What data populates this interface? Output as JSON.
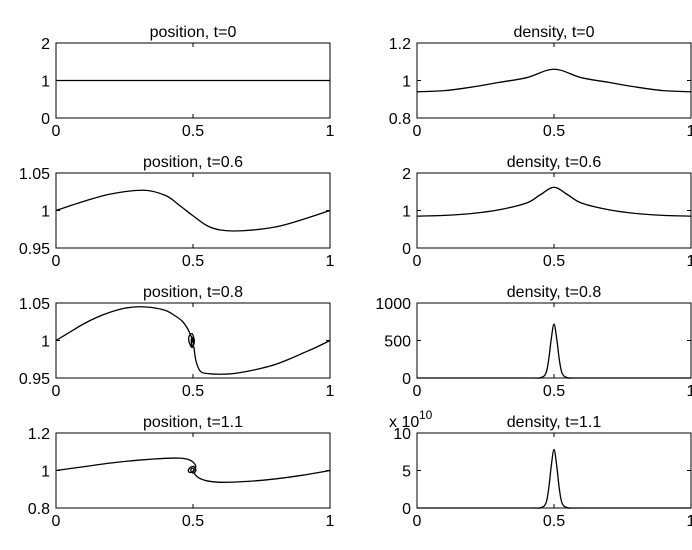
{
  "chart_data": [
    {
      "type": "line",
      "title": "position, t=0",
      "xlim": [
        0,
        1
      ],
      "ylim": [
        0,
        2
      ],
      "xticks": [
        0,
        0.5,
        1
      ],
      "xtick_labels": [
        "0",
        "0.5",
        "1"
      ],
      "yticks": [
        0,
        1,
        2
      ],
      "ytick_labels": [
        "0",
        "1",
        "2"
      ],
      "x": [
        0,
        0.5,
        1
      ],
      "y": [
        1,
        1,
        1
      ]
    },
    {
      "type": "line",
      "title": "density, t=0",
      "xlim": [
        0,
        1
      ],
      "ylim": [
        0.8,
        1.2
      ],
      "xticks": [
        0,
        0.5,
        1
      ],
      "xtick_labels": [
        "0",
        "0.5",
        "1"
      ],
      "yticks": [
        0.8,
        1,
        1.2
      ],
      "ytick_labels": [
        "0.8",
        "1",
        "1.2"
      ],
      "x": [
        0,
        0.1,
        0.2,
        0.3,
        0.4,
        0.5,
        0.6,
        0.7,
        0.8,
        0.9,
        1
      ],
      "y": [
        0.94,
        0.946,
        0.965,
        0.99,
        1.015,
        1.06,
        1.015,
        0.99,
        0.965,
        0.946,
        0.94
      ]
    },
    {
      "type": "line",
      "title": "position, t=0.6",
      "xlim": [
        0,
        1
      ],
      "ylim": [
        0.95,
        1.05
      ],
      "xticks": [
        0,
        0.5,
        1
      ],
      "xtick_labels": [
        "0",
        "0.5",
        "1"
      ],
      "yticks": [
        0.95,
        1,
        1.05
      ],
      "ytick_labels": [
        "0.95",
        "1",
        "1.05"
      ],
      "x": [
        0,
        0.1,
        0.2,
        0.32,
        0.4,
        0.45,
        0.5,
        0.55,
        0.6,
        0.68,
        0.8,
        0.9,
        1
      ],
      "y": [
        1.0,
        1.012,
        1.022,
        1.027,
        1.02,
        1.007,
        0.993,
        0.98,
        0.974,
        0.973,
        0.978,
        0.988,
        1.0
      ]
    },
    {
      "type": "line",
      "title": "density, t=0.6",
      "xlim": [
        0,
        1
      ],
      "ylim": [
        0,
        2
      ],
      "xticks": [
        0,
        0.5,
        1
      ],
      "xtick_labels": [
        "0",
        "0.5",
        "1"
      ],
      "yticks": [
        0,
        1,
        2
      ],
      "ytick_labels": [
        "0",
        "1",
        "2"
      ],
      "x": [
        0,
        0.1,
        0.2,
        0.3,
        0.4,
        0.45,
        0.5,
        0.55,
        0.6,
        0.7,
        0.8,
        0.9,
        1
      ],
      "y": [
        0.85,
        0.87,
        0.92,
        1.02,
        1.2,
        1.42,
        1.62,
        1.42,
        1.2,
        1.02,
        0.92,
        0.87,
        0.85
      ]
    },
    {
      "type": "line",
      "title": "position, t=0.8",
      "xlim": [
        0,
        1
      ],
      "ylim": [
        0.95,
        1.05
      ],
      "xticks": [
        0,
        0.5,
        1
      ],
      "xtick_labels": [
        "0",
        "0.5",
        "1"
      ],
      "yticks": [
        0.95,
        1,
        1.05
      ],
      "ytick_labels": [
        "0.95",
        "1",
        "1.05"
      ],
      "x": [
        0,
        0.05,
        0.1,
        0.15,
        0.2,
        0.25,
        0.3,
        0.35,
        0.4,
        0.43,
        0.46,
        0.48,
        0.49,
        0.5,
        0.5,
        0.495,
        0.49,
        0.485,
        0.485,
        0.49,
        0.497,
        0.502,
        0.505,
        0.502,
        0.497,
        0.494,
        0.494,
        0.497,
        0.5,
        0.5,
        0.497,
        0.495,
        0.497,
        0.499,
        0.498
      ],
      "y": [
        1.0,
        1.011,
        1.022,
        1.031,
        1.038,
        1.043,
        1.045,
        1.044,
        1.04,
        1.034,
        1.026,
        1.016,
        1.008,
        1.0,
        0.992,
        0.991,
        0.994,
        0.999,
        1.005,
        1.008,
        1.009,
        1.005,
        0.999,
        0.994,
        0.993,
        0.996,
        1.001,
        1.004,
        1.003,
        1.0,
        0.998,
        0.999,
        1.001,
        1.001,
        1.0
      ],
      "x2": [
        0.503,
        0.51,
        0.52,
        0.53,
        0.55,
        0.6,
        0.65,
        0.7,
        0.75,
        0.8,
        0.85,
        0.9,
        0.95,
        1
      ],
      "y2": [
        0.992,
        0.974,
        0.963,
        0.958,
        0.956,
        0.955,
        0.956,
        0.959,
        0.963,
        0.968,
        0.975,
        0.983,
        0.991,
        1.0
      ]
    },
    {
      "type": "line",
      "title": "density, t=0.8",
      "xlim": [
        0,
        1
      ],
      "ylim": [
        0,
        1000
      ],
      "xticks": [
        0,
        0.5,
        1
      ],
      "xtick_labels": [
        "0",
        "0.5",
        "1"
      ],
      "yticks": [
        0,
        500,
        1000
      ],
      "ytick_labels": [
        "0",
        "500",
        "1000"
      ],
      "x": [
        0,
        0.4,
        0.45,
        0.47,
        0.48,
        0.49,
        0.5,
        0.51,
        0.52,
        0.53,
        0.55,
        0.6,
        1
      ],
      "y": [
        0,
        0,
        5,
        60,
        230,
        520,
        720,
        520,
        230,
        60,
        5,
        0,
        0
      ]
    },
    {
      "type": "line",
      "title": "position, t=1.1",
      "xlim": [
        0,
        1
      ],
      "ylim": [
        0.8,
        1.2
      ],
      "xticks": [
        0,
        0.5,
        1
      ],
      "xtick_labels": [
        "0",
        "0.5",
        "1"
      ],
      "yticks": [
        0.8,
        1,
        1.2
      ],
      "ytick_labels": [
        "0.8",
        "1",
        "1.2"
      ],
      "x": [
        0,
        0.1,
        0.2,
        0.3,
        0.4,
        0.45,
        0.48,
        0.5,
        0.51,
        0.5,
        0.487,
        0.483,
        0.49,
        0.5,
        0.508,
        0.51,
        0.504,
        0.495,
        0.492,
        0.496,
        0.502,
        0.504,
        0.501,
        0.499
      ],
      "y": [
        1.0,
        1.02,
        1.04,
        1.055,
        1.065,
        1.066,
        1.06,
        1.045,
        1.02,
        0.995,
        0.99,
        1.002,
        1.016,
        1.022,
        1.014,
        0.998,
        0.988,
        0.99,
        1.003,
        1.012,
        1.01,
        1.0,
        0.995,
        1.0
      ],
      "x2": [
        0.504,
        0.52,
        0.55,
        0.6,
        0.7,
        0.8,
        0.9,
        1
      ],
      "y2": [
        0.985,
        0.962,
        0.945,
        0.937,
        0.942,
        0.955,
        0.975,
        1.0
      ]
    },
    {
      "type": "line",
      "title": "density, t=1.1",
      "xlim": [
        0,
        1
      ],
      "ylim": [
        0,
        10
      ],
      "y_scale_label": "x 10",
      "y_scale_exponent": "10",
      "xticks": [
        0,
        0.5,
        1
      ],
      "xtick_labels": [
        "0",
        "0.5",
        "1"
      ],
      "yticks": [
        0,
        5,
        10
      ],
      "ytick_labels": [
        "0",
        "5",
        "10"
      ],
      "x": [
        0,
        0.4,
        0.45,
        0.47,
        0.48,
        0.49,
        0.5,
        0.51,
        0.52,
        0.53,
        0.55,
        0.6,
        1
      ],
      "y": [
        0,
        0,
        0.05,
        0.6,
        2.4,
        5.6,
        7.8,
        5.6,
        2.4,
        0.6,
        0.05,
        0,
        0
      ]
    }
  ]
}
